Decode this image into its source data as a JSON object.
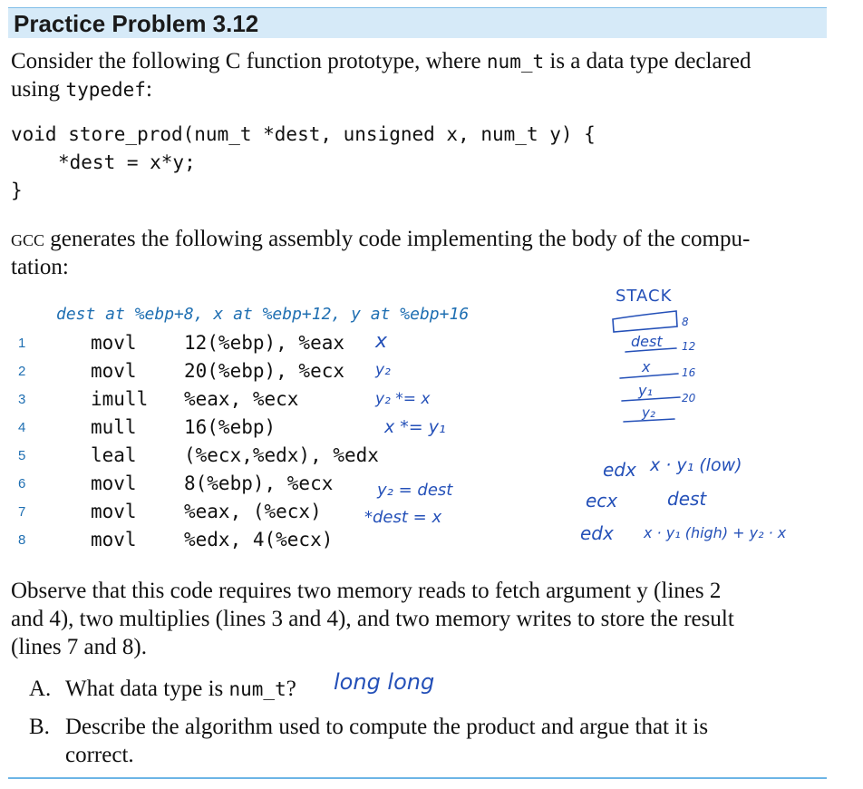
{
  "header": {
    "title": "Practice Problem 3.12"
  },
  "intro": {
    "line1_a": "Consider the following C function prototype, where ",
    "line1_code": "num_t",
    "line1_b": " is a data type declared",
    "line2_a": "using ",
    "line2_code": "typedef",
    "line2_b": ":"
  },
  "c_code": {
    "line1": "void store_prod(num_t *dest, unsigned x, num_t y) {",
    "line2": "*dest = x*y;",
    "line3": "}"
  },
  "gcc_text": {
    "gcc": "gcc",
    "line1_rest": " generates the following assembly code implementing the body of the compu-",
    "line2": "tation:"
  },
  "assembly": {
    "comment": "dest at %ebp+8, x at %ebp+12, y at %ebp+16",
    "lines": [
      {
        "num": "1",
        "op": "movl",
        "args": "12(%ebp), %eax"
      },
      {
        "num": "2",
        "op": "movl",
        "args": "20(%ebp), %ecx"
      },
      {
        "num": "3",
        "op": "imull",
        "args": "%eax, %ecx"
      },
      {
        "num": "4",
        "op": "mull",
        "args": "16(%ebp)"
      },
      {
        "num": "5",
        "op": "leal",
        "args": "(%ecx,%edx), %edx"
      },
      {
        "num": "6",
        "op": "movl",
        "args": "8(%ebp), %ecx"
      },
      {
        "num": "7",
        "op": "movl",
        "args": "%eax, (%ecx)"
      },
      {
        "num": "8",
        "op": "movl",
        "args": "%edx, 4(%ecx)"
      }
    ]
  },
  "handwriting": {
    "line1_note": "x",
    "line2_note": "y₂",
    "line3_note": "y₂ *= x",
    "line4_note": "x *= y₁",
    "line6_note": "y₂ = dest",
    "line7_note": "*dest = x",
    "stack_title": "STACK",
    "stack_offset_8": "8",
    "stack_slot_dest": "dest",
    "stack_offset_12": "12",
    "stack_slot_x": "x",
    "stack_offset_16": "16",
    "stack_slot_y1": "y₁",
    "stack_offset_20": "20",
    "stack_slot_y2": "y₂",
    "reg_edx_1": "edx",
    "reg_edx_1_val": "x · y₁ (low)",
    "reg_ecx": "ecx",
    "reg_ecx_val": "dest",
    "reg_edx_2": "edx",
    "reg_edx_2_val": "x · y₁ (high) + y₂ · x",
    "answer_a": "long long"
  },
  "observe": {
    "line1": "Observe that this code requires two memory reads to fetch argument y (lines 2",
    "line2": "and 4), two multiplies (lines 3 and 4), and two memory writes to store the result",
    "line3": "(lines 7 and 8)."
  },
  "questions": {
    "a_label": "A.",
    "a_text": "What data type is ",
    "a_code": "num_t",
    "a_q": "?",
    "b_label": "B.",
    "b_line1": "Describe the algorithm used to compute the product and argue that it is",
    "b_line2": "correct."
  }
}
